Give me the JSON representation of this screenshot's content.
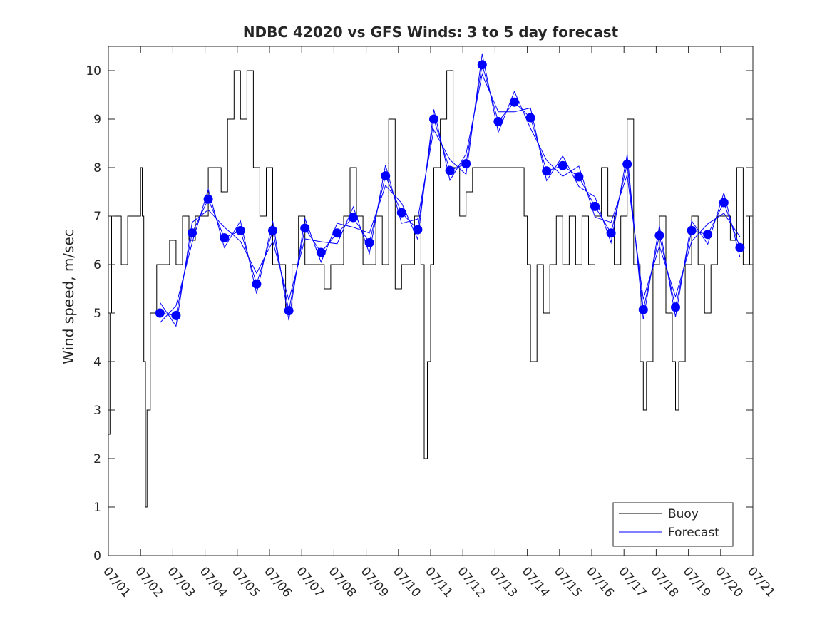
{
  "chart_data": {
    "type": "line",
    "title": "NDBC 42020 vs GFS Winds: 3 to 5 day forecast",
    "xlabel": "",
    "ylabel": "Wind speed, m/sec",
    "xlim": [
      1,
      21
    ],
    "ylim": [
      0,
      10.5
    ],
    "yticks": [
      0,
      1,
      2,
      3,
      4,
      5,
      6,
      7,
      8,
      9,
      10
    ],
    "xticks": [
      1,
      2,
      3,
      4,
      5,
      6,
      7,
      8,
      9,
      10,
      11,
      12,
      13,
      14,
      15,
      16,
      17,
      18,
      19,
      20,
      21
    ],
    "xtick_labels": [
      "07/01",
      "07/02",
      "07/03",
      "07/04",
      "07/05",
      "07/06",
      "07/07",
      "07/08",
      "07/09",
      "07/10",
      "07/11",
      "07/12",
      "07/13",
      "07/14",
      "07/15",
      "07/16",
      "07/17",
      "07/18",
      "07/19",
      "07/20",
      "07/21"
    ],
    "legend": {
      "placement": "bottom-right",
      "entries": [
        "Buoy",
        "Forecast"
      ]
    },
    "colors": {
      "buoy": "#000000",
      "forecast": "#0000ff",
      "axis": "#262626"
    },
    "series": [
      {
        "name": "Buoy",
        "x": [
          1.0,
          1.05,
          1.1,
          1.2,
          1.4,
          1.6,
          1.8,
          2.0,
          2.05,
          2.1,
          2.15,
          2.2,
          2.3,
          2.5,
          2.7,
          2.9,
          3.1,
          3.3,
          3.5,
          3.7,
          3.9,
          4.1,
          4.3,
          4.5,
          4.7,
          4.9,
          5.1,
          5.3,
          5.5,
          5.7,
          5.9,
          6.1,
          6.3,
          6.5,
          6.7,
          6.9,
          7.1,
          7.3,
          7.5,
          7.7,
          7.9,
          8.1,
          8.3,
          8.5,
          8.7,
          8.9,
          9.1,
          9.3,
          9.5,
          9.7,
          9.9,
          10.1,
          10.3,
          10.5,
          10.7,
          10.8,
          10.9,
          11.0,
          11.1,
          11.3,
          11.5,
          11.7,
          11.9,
          12.1,
          12.3,
          13.9,
          14.0,
          14.1,
          14.3,
          14.5,
          14.7,
          14.9,
          15.1,
          15.3,
          15.5,
          15.7,
          15.9,
          16.1,
          16.3,
          16.5,
          16.7,
          16.9,
          17.1,
          17.3,
          17.5,
          17.6,
          17.7,
          17.9,
          18.1,
          18.3,
          18.5,
          18.6,
          18.7,
          18.9,
          19.1,
          19.3,
          19.5,
          19.7,
          19.9,
          20.1,
          20.3,
          20.5,
          20.7,
          20.9,
          21.0
        ],
        "values": [
          2.5,
          5,
          7,
          7,
          6,
          7,
          7,
          8,
          7,
          4,
          1,
          3,
          5,
          6,
          6,
          6.5,
          6,
          7,
          6.5,
          7,
          7,
          8,
          8,
          7.5,
          9,
          10,
          9,
          10,
          8,
          7,
          8,
          6,
          6,
          5,
          6,
          7,
          6,
          6,
          6,
          5.5,
          6,
          6,
          7,
          8,
          7,
          6,
          6,
          7,
          6,
          9,
          5.5,
          6,
          6,
          7,
          6,
          2,
          4,
          6,
          8,
          9,
          10,
          8,
          7,
          7.5,
          8,
          7,
          6,
          4,
          6,
          5,
          6,
          7,
          6,
          7,
          6,
          7,
          6,
          7,
          8,
          7,
          6,
          7,
          9,
          6,
          4,
          3,
          4,
          6,
          7,
          5,
          4,
          3,
          4,
          6,
          7,
          6,
          5,
          6,
          7,
          7,
          6.5,
          8,
          6,
          7,
          7.5
        ]
      },
      {
        "name": "Forecast",
        "x": [
          2.6,
          3.1,
          3.6,
          4.1,
          4.6,
          5.1,
          5.6,
          6.1,
          6.6,
          7.1,
          7.6,
          8.1,
          8.6,
          9.1,
          9.6,
          10.1,
          10.6,
          11.1,
          11.6,
          12.1,
          12.6,
          13.1,
          13.6,
          14.1,
          14.6,
          15.1,
          15.6,
          16.1,
          16.6,
          17.1,
          17.6,
          18.1,
          18.6,
          19.1,
          19.6,
          20.1,
          20.6
        ],
        "values": [
          5.0,
          4.95,
          6.65,
          7.35,
          6.55,
          6.7,
          5.6,
          6.7,
          5.05,
          6.75,
          6.25,
          6.65,
          6.97,
          6.45,
          7.83,
          7.07,
          6.72,
          9.0,
          7.94,
          8.08,
          10.12,
          8.95,
          9.35,
          9.03,
          7.93,
          8.04,
          7.81,
          7.2,
          6.65,
          8.07,
          5.07,
          6.6,
          5.12,
          6.7,
          6.62,
          7.28,
          6.35
        ]
      }
    ]
  }
}
